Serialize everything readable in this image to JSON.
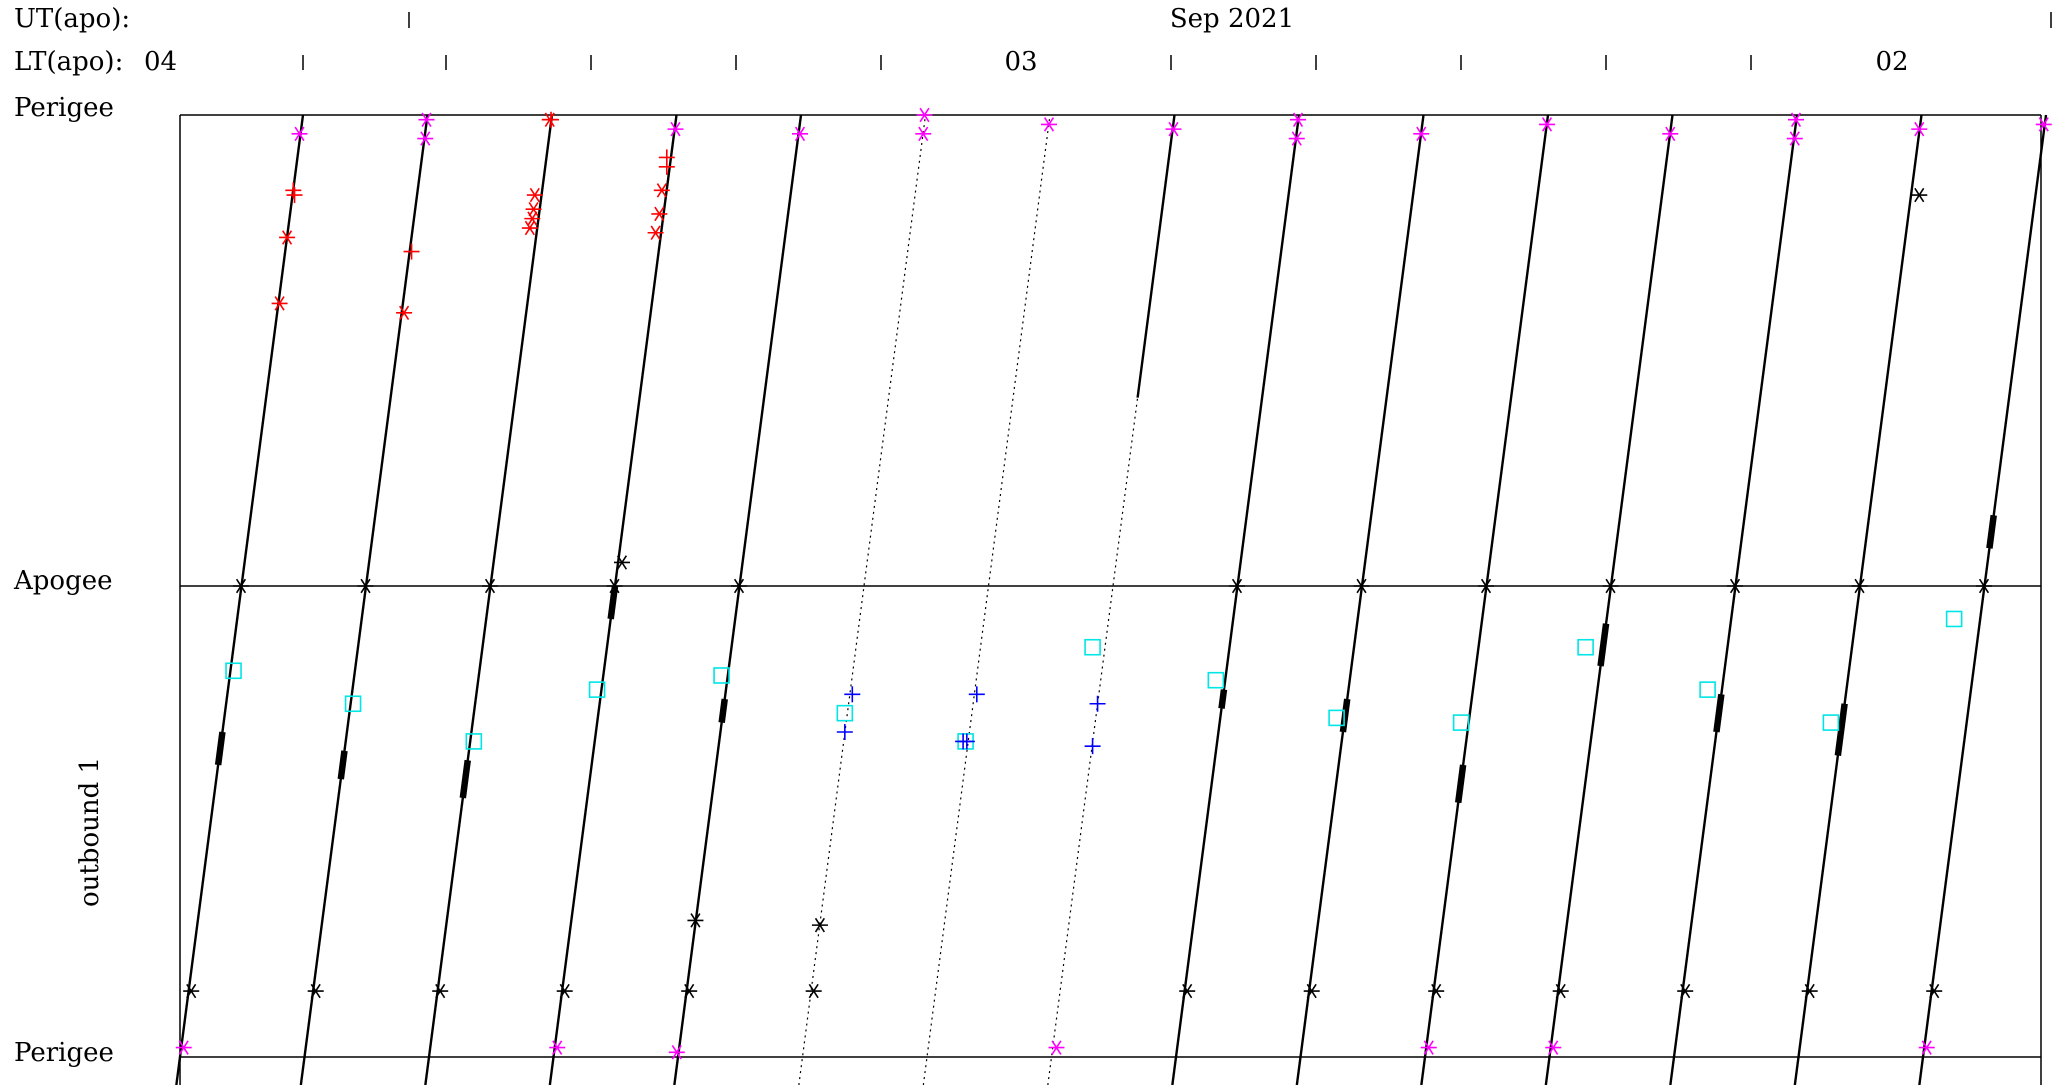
{
  "header": {
    "ut_label": "UT(apo):",
    "lt_label": "LT(apo):",
    "month_label": "Sep 2021",
    "lt_start": "04",
    "lt_mid": "03",
    "lt_end": "02"
  },
  "axis": {
    "top_label": "Perigee",
    "mid_label": "Apogee",
    "bottom_label": "Perigee",
    "side_label": "outbound 1"
  },
  "colors": {
    "orbit": "#000000",
    "red": "#ff0000",
    "magenta": "#ff00ff",
    "cyan": "#00e5e5",
    "blue": "#0000ff"
  },
  "chart_data": {
    "type": "scatter",
    "title": "",
    "xlabel": "",
    "ylabel": "",
    "orbits": [
      {
        "x0": 0.0,
        "style": "solid",
        "thick": [
          [
            -0.38,
            -0.31
          ]
        ]
      },
      {
        "x0": 1.0,
        "style": "solid",
        "thick": [
          [
            -0.41,
            -0.35
          ]
        ]
      },
      {
        "x0": 2.0,
        "style": "solid",
        "thick": [
          [
            -0.45,
            -0.37
          ]
        ]
      },
      {
        "x0": 3.0,
        "style": "solid",
        "thick": [
          [
            -0.07,
            0.0
          ]
        ]
      },
      {
        "x0": 4.0,
        "style": "solid",
        "thick": [
          [
            -0.29,
            -0.24
          ]
        ]
      },
      {
        "x0": 5.0,
        "style": "dotted",
        "thick": []
      },
      {
        "x0": 6.0,
        "style": "dotted",
        "thick": []
      },
      {
        "x0": 7.0,
        "style": "dotted",
        "solid_top": 0.4,
        "thick": []
      },
      {
        "x0": 8.0,
        "style": "solid",
        "thick": [
          [
            -0.26,
            -0.22
          ]
        ]
      },
      {
        "x0": 9.0,
        "style": "solid",
        "thick": [
          [
            -0.31,
            -0.24
          ]
        ]
      },
      {
        "x0": 10.0,
        "style": "solid",
        "thick": [
          [
            -0.46,
            -0.38
          ]
        ]
      },
      {
        "x0": 11.0,
        "style": "solid",
        "thick": [
          [
            -0.17,
            -0.08
          ]
        ]
      },
      {
        "x0": 12.0,
        "style": "solid",
        "thick": [
          [
            -0.31,
            -0.23
          ]
        ]
      },
      {
        "x0": 13.0,
        "style": "solid",
        "thick": [
          [
            -0.36,
            -0.25
          ]
        ]
      },
      {
        "x0": 14.0,
        "style": "solid",
        "thick": [
          [
            0.08,
            0.15
          ]
        ]
      }
    ],
    "markers": [
      {
        "kind": "star",
        "color": "black",
        "pts": [
          [
            0.49,
            0
          ],
          [
            1.49,
            0
          ],
          [
            2.49,
            0
          ],
          [
            3.49,
            0
          ],
          [
            4.49,
            0
          ],
          [
            8.49,
            0
          ],
          [
            9.49,
            0
          ],
          [
            10.49,
            0
          ],
          [
            11.49,
            0
          ],
          [
            12.49,
            0
          ],
          [
            13.49,
            0
          ],
          [
            14.49,
            0
          ],
          [
            0.09,
            -0.86
          ],
          [
            1.09,
            -0.86
          ],
          [
            2.09,
            -0.86
          ],
          [
            3.09,
            -0.86
          ],
          [
            4.09,
            -0.86
          ],
          [
            5.09,
            -0.86
          ],
          [
            8.09,
            -0.86
          ],
          [
            9.09,
            -0.86
          ],
          [
            10.09,
            -0.86
          ],
          [
            11.09,
            -0.86
          ],
          [
            12.09,
            -0.86
          ],
          [
            13.09,
            -0.86
          ],
          [
            14.09,
            -0.86
          ],
          [
            3.55,
            0.05
          ],
          [
            4.14,
            -0.71
          ],
          [
            5.14,
            -0.72
          ],
          [
            13.97,
            0.83
          ]
        ]
      },
      {
        "kind": "star",
        "color": "magenta",
        "pts": [
          [
            0.96,
            0.96
          ],
          [
            1.98,
            0.99
          ],
          [
            1.97,
            0.95
          ],
          [
            3.98,
            0.97
          ],
          [
            4.98,
            0.96
          ],
          [
            5.98,
            1.0
          ],
          [
            5.97,
            0.96
          ],
          [
            6.98,
            0.98
          ],
          [
            7.98,
            0.97
          ],
          [
            8.98,
            0.99
          ],
          [
            8.97,
            0.95
          ],
          [
            9.97,
            0.96
          ],
          [
            10.98,
            0.98
          ],
          [
            11.97,
            0.96
          ],
          [
            12.98,
            0.99
          ],
          [
            12.97,
            0.95
          ],
          [
            13.97,
            0.97
          ],
          [
            14.97,
            0.98
          ],
          [
            0.03,
            -0.98
          ],
          [
            3.03,
            -0.98
          ],
          [
            3.99,
            -0.99
          ],
          [
            7.04,
            -0.98
          ],
          [
            10.03,
            -0.98
          ],
          [
            11.03,
            -0.98
          ],
          [
            14.03,
            -0.98
          ]
        ]
      },
      {
        "kind": "star",
        "color": "red",
        "pts": [
          [
            0.86,
            0.74
          ],
          [
            0.8,
            0.6
          ],
          [
            1.8,
            0.58
          ],
          [
            2.85,
            0.83
          ],
          [
            2.84,
            0.8
          ],
          [
            2.83,
            0.78
          ],
          [
            2.81,
            0.76
          ],
          [
            3.87,
            0.84
          ],
          [
            3.85,
            0.79
          ],
          [
            3.82,
            0.75
          ],
          [
            2.97,
            0.99
          ]
        ]
      },
      {
        "kind": "plus",
        "color": "red",
        "pts": [
          [
            0.91,
            0.84
          ],
          [
            0.92,
            0.83
          ],
          [
            1.86,
            0.71
          ],
          [
            3.91,
            0.91
          ],
          [
            3.91,
            0.89
          ],
          [
            2.98,
            0.99
          ]
        ]
      },
      {
        "kind": "square",
        "color": "cyan",
        "pts": [
          [
            0.43,
            -0.18
          ],
          [
            1.39,
            -0.25
          ],
          [
            2.36,
            -0.33
          ],
          [
            3.35,
            -0.22
          ],
          [
            4.35,
            -0.19
          ],
          [
            5.34,
            -0.27
          ],
          [
            6.31,
            -0.33
          ],
          [
            7.33,
            -0.13
          ],
          [
            8.32,
            -0.2
          ],
          [
            9.29,
            -0.28
          ],
          [
            10.29,
            -0.29
          ],
          [
            11.29,
            -0.13
          ],
          [
            12.27,
            -0.22
          ],
          [
            13.26,
            -0.29
          ],
          [
            14.25,
            -0.07
          ]
        ]
      },
      {
        "kind": "plus",
        "color": "blue",
        "pts": [
          [
            5.4,
            -0.23
          ],
          [
            5.34,
            -0.31
          ],
          [
            6.4,
            -0.23
          ],
          [
            6.32,
            -0.33
          ],
          [
            6.29,
            -0.33
          ],
          [
            7.37,
            -0.25
          ],
          [
            7.33,
            -0.34
          ]
        ]
      }
    ]
  }
}
